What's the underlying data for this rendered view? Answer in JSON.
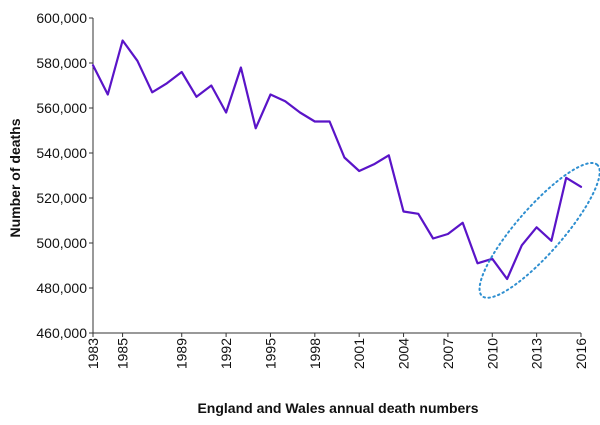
{
  "chart_data": {
    "type": "line",
    "title": "",
    "xlabel": "England and Wales annual death numbers",
    "ylabel": "Number of deaths",
    "xlim": [
      1983,
      2016
    ],
    "ylim": [
      460000,
      600000
    ],
    "y_ticks": [
      460000,
      480000,
      500000,
      520000,
      540000,
      560000,
      580000,
      600000
    ],
    "y_tick_labels": [
      "460,000",
      "480,000",
      "500,000",
      "520,000",
      "540,000",
      "560,000",
      "580,000",
      "600,000"
    ],
    "x_tick_labels": [
      "1983",
      "1985",
      "1989",
      "1992",
      "1995",
      "1998",
      "2001",
      "2004",
      "2007",
      "2010",
      "2013",
      "2016"
    ],
    "grid": false,
    "x": [
      1983,
      1984,
      1985,
      1986,
      1987,
      1988,
      1989,
      1990,
      1991,
      1992,
      1993,
      1994,
      1995,
      1996,
      1997,
      1998,
      1999,
      2000,
      2001,
      2002,
      2003,
      2004,
      2005,
      2006,
      2007,
      2008,
      2009,
      2010,
      2011,
      2012,
      2013,
      2014,
      2015,
      2016
    ],
    "series": [
      {
        "values": [
          579000,
          566000,
          590000,
          581000,
          567000,
          571000,
          576000,
          565000,
          570000,
          558000,
          578000,
          551000,
          566000,
          563000,
          558000,
          554000,
          554000,
          538000,
          532000,
          535000,
          539000,
          514000,
          513000,
          502000,
          504000,
          509000,
          491000,
          493000,
          484000,
          499000,
          507000,
          501000,
          529000,
          525000
        ],
        "color": "#5a14c8"
      }
    ],
    "annotation": {
      "shape": "dotted-ellipse",
      "encloses_x_range": [
        2010,
        2016
      ],
      "color": "#2f8fd0"
    }
  }
}
